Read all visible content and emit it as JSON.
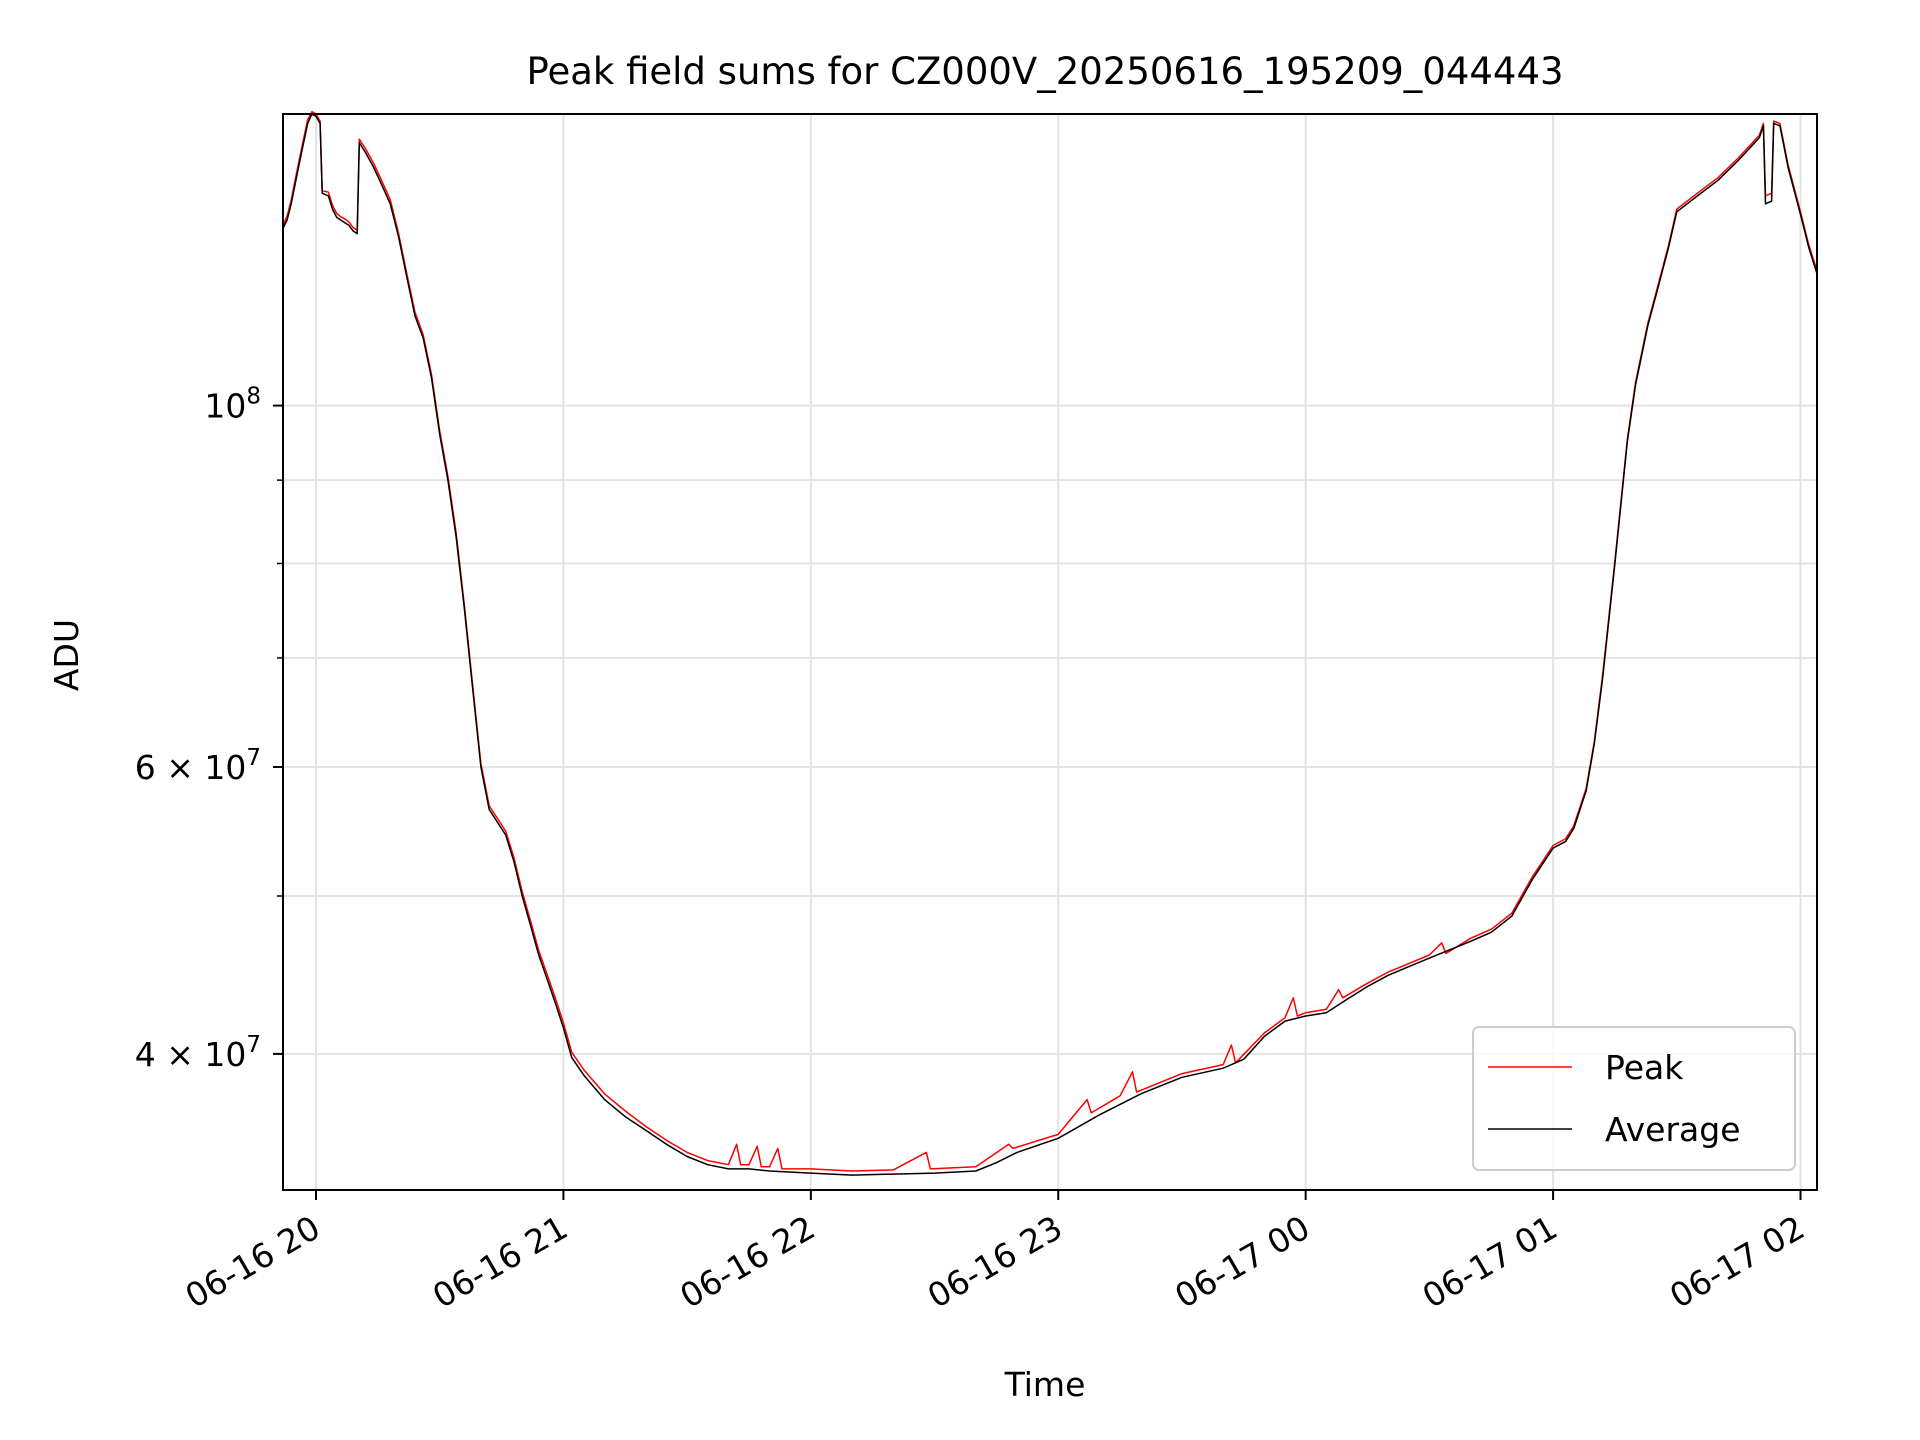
{
  "chart_data": {
    "type": "line",
    "title": "Peak field sums for CZ000V_20250616_195209_044443",
    "xlabel": "Time",
    "ylabel": "ADU",
    "yscale": "log",
    "ylim": [
      33000000,
      151000000
    ],
    "xlim": [
      "2025-06-16 19:52",
      "2025-06-17 02:04"
    ],
    "x_ticks": [
      {
        "t": "2025-06-16 20:00",
        "label": "06-16 20"
      },
      {
        "t": "2025-06-16 21:00",
        "label": "06-16 21"
      },
      {
        "t": "2025-06-16 22:00",
        "label": "06-16 22"
      },
      {
        "t": "2025-06-16 23:00",
        "label": "06-16 23"
      },
      {
        "t": "2025-06-17 00:00",
        "label": "06-17 00"
      },
      {
        "t": "2025-06-17 01:00",
        "label": "06-17 01"
      },
      {
        "t": "2025-06-17 02:00",
        "label": "06-17 02"
      }
    ],
    "y_major_ticks": [
      {
        "value": 100000000,
        "base": "10",
        "exp": "8"
      },
      {
        "value": 60000000,
        "base": "6 × 10",
        "exp": "7"
      },
      {
        "value": 40000000,
        "base": "4 × 10",
        "exp": "7"
      }
    ],
    "y_minor_ticks": [
      50000000,
      70000000,
      80000000,
      90000000
    ],
    "grid": true,
    "legend_position": "lower-right",
    "series": [
      {
        "name": "Average",
        "color": "#000000",
        "points": [
          [
            "2025-06-16 19:52",
            128500000
          ],
          [
            "2025-06-16 19:53",
            130000000
          ],
          [
            "2025-06-16 19:54",
            133000000
          ],
          [
            "2025-06-16 19:55",
            137000000
          ],
          [
            "2025-06-16 19:56",
            141000000
          ],
          [
            "2025-06-16 19:57",
            145000000
          ],
          [
            "2025-06-16 19:58",
            149000000
          ],
          [
            "2025-06-16 19:59",
            151000000
          ],
          [
            "2025-06-16 20:00",
            150500000
          ],
          [
            "2025-06-16 20:01",
            149000000
          ],
          [
            "2025-06-16 20:01:30",
            135000000
          ],
          [
            "2025-06-16 20:03",
            134500000
          ],
          [
            "2025-06-16 20:04",
            132000000
          ],
          [
            "2025-06-16 20:05",
            130500000
          ],
          [
            "2025-06-16 20:06",
            130000000
          ],
          [
            "2025-06-16 20:07",
            129500000
          ],
          [
            "2025-06-16 20:08",
            129000000
          ],
          [
            "2025-06-16 20:09",
            128000000
          ],
          [
            "2025-06-16 20:10",
            127500000
          ],
          [
            "2025-06-16 20:10:30",
            145000000
          ],
          [
            "2025-06-16 20:12",
            143000000
          ],
          [
            "2025-06-16 20:14",
            140000000
          ],
          [
            "2025-06-16 20:16",
            136500000
          ],
          [
            "2025-06-16 20:18",
            133000000
          ],
          [
            "2025-06-16 20:20",
            127000000
          ],
          [
            "2025-06-16 20:22",
            120000000
          ],
          [
            "2025-06-16 20:24",
            113500000
          ],
          [
            "2025-06-16 20:26",
            110000000
          ],
          [
            "2025-06-16 20:28",
            104000000
          ],
          [
            "2025-06-16 20:30",
            96000000
          ],
          [
            "2025-06-16 20:32",
            90000000
          ],
          [
            "2025-06-16 20:34",
            83000000
          ],
          [
            "2025-06-16 20:36",
            75000000
          ],
          [
            "2025-06-16 20:38",
            67000000
          ],
          [
            "2025-06-16 20:40",
            60000000
          ],
          [
            "2025-06-16 20:42",
            56500000
          ],
          [
            "2025-06-16 20:44",
            55500000
          ],
          [
            "2025-06-16 20:46",
            54500000
          ],
          [
            "2025-06-16 20:48",
            52500000
          ],
          [
            "2025-06-16 20:50",
            50000000
          ],
          [
            "2025-06-16 20:52",
            48000000
          ],
          [
            "2025-06-16 20:54",
            46000000
          ],
          [
            "2025-06-16 20:56",
            44500000
          ],
          [
            "2025-06-16 20:58",
            43000000
          ],
          [
            "2025-06-16 21:00",
            41500000
          ],
          [
            "2025-06-16 21:02",
            39800000
          ],
          [
            "2025-06-16 21:05",
            38800000
          ],
          [
            "2025-06-16 21:10",
            37500000
          ],
          [
            "2025-06-16 21:15",
            36600000
          ],
          [
            "2025-06-16 21:20",
            35900000
          ],
          [
            "2025-06-16 21:25",
            35200000
          ],
          [
            "2025-06-16 21:30",
            34600000
          ],
          [
            "2025-06-16 21:35",
            34200000
          ],
          [
            "2025-06-16 21:40",
            34000000
          ],
          [
            "2025-06-16 21:45",
            34000000
          ],
          [
            "2025-06-16 21:50",
            33900000
          ],
          [
            "2025-06-16 22:00",
            33800000
          ],
          [
            "2025-06-16 22:10",
            33700000
          ],
          [
            "2025-06-16 22:20",
            33750000
          ],
          [
            "2025-06-16 22:30",
            33800000
          ],
          [
            "2025-06-16 22:40",
            33900000
          ],
          [
            "2025-06-16 22:45",
            34300000
          ],
          [
            "2025-06-16 22:50",
            34800000
          ],
          [
            "2025-06-16 23:00",
            35500000
          ],
          [
            "2025-06-16 23:10",
            36700000
          ],
          [
            "2025-06-16 23:20",
            37800000
          ],
          [
            "2025-06-16 23:30",
            38700000
          ],
          [
            "2025-06-16 23:40",
            39200000
          ],
          [
            "2025-06-16 23:45",
            39700000
          ],
          [
            "2025-06-16 23:50",
            41000000
          ],
          [
            "2025-06-16 23:55",
            41900000
          ],
          [
            "2025-06-17 00:00",
            42200000
          ],
          [
            "2025-06-17 00:05",
            42400000
          ],
          [
            "2025-06-17 00:10",
            43200000
          ],
          [
            "2025-06-17 00:15",
            44000000
          ],
          [
            "2025-06-17 00:20",
            44700000
          ],
          [
            "2025-06-17 00:30",
            45800000
          ],
          [
            "2025-06-17 00:40",
            46900000
          ],
          [
            "2025-06-17 00:45",
            47500000
          ],
          [
            "2025-06-17 00:50",
            48600000
          ],
          [
            "2025-06-17 00:55",
            51200000
          ],
          [
            "2025-06-17 01:00",
            53500000
          ],
          [
            "2025-06-17 01:03",
            54000000
          ],
          [
            "2025-06-17 01:05",
            55000000
          ],
          [
            "2025-06-17 01:08",
            58000000
          ],
          [
            "2025-06-17 01:10",
            62000000
          ],
          [
            "2025-06-17 01:12",
            68000000
          ],
          [
            "2025-06-17 01:15",
            80000000
          ],
          [
            "2025-06-17 01:18",
            95000000
          ],
          [
            "2025-06-17 01:20",
            103000000
          ],
          [
            "2025-06-17 01:23",
            112000000
          ],
          [
            "2025-06-17 01:25",
            117000000
          ],
          [
            "2025-06-17 01:28",
            125000000
          ],
          [
            "2025-06-17 01:30",
            131500000
          ],
          [
            "2025-06-17 01:35",
            134500000
          ],
          [
            "2025-06-17 01:40",
            137500000
          ],
          [
            "2025-06-17 01:45",
            141500000
          ],
          [
            "2025-06-17 01:50",
            146000000
          ],
          [
            "2025-06-17 01:51",
            148500000
          ],
          [
            "2025-06-17 01:51:30",
            133000000
          ],
          [
            "2025-06-17 01:53",
            133500000
          ],
          [
            "2025-06-17 01:53:30",
            149000000
          ],
          [
            "2025-06-17 01:55",
            148500000
          ],
          [
            "2025-06-17 01:57",
            140000000
          ],
          [
            "2025-06-17 02:00",
            131000000
          ],
          [
            "2025-06-17 02:02",
            125000000
          ],
          [
            "2025-06-17 02:04",
            120500000
          ]
        ]
      },
      {
        "name": "Peak",
        "color": "#ff0000",
        "points": [
          [
            "2025-06-16 19:52",
            129000000
          ],
          [
            "2025-06-16 19:53",
            130700000
          ],
          [
            "2025-06-16 19:54",
            133700000
          ],
          [
            "2025-06-16 19:55",
            137800000
          ],
          [
            "2025-06-16 19:56",
            141800000
          ],
          [
            "2025-06-16 19:57",
            145800000
          ],
          [
            "2025-06-16 19:58",
            149800000
          ],
          [
            "2025-06-16 19:59",
            151500000
          ],
          [
            "2025-06-16 20:00",
            151000000
          ],
          [
            "2025-06-16 20:01",
            149500000
          ],
          [
            "2025-06-16 20:01:30",
            135500000
          ],
          [
            "2025-06-16 20:03",
            135200000
          ],
          [
            "2025-06-16 20:04",
            132700000
          ],
          [
            "2025-06-16 20:05",
            131200000
          ],
          [
            "2025-06-16 20:06",
            130600000
          ],
          [
            "2025-06-16 20:07",
            130200000
          ],
          [
            "2025-06-16 20:08",
            129600000
          ],
          [
            "2025-06-16 20:09",
            128600000
          ],
          [
            "2025-06-16 20:10",
            128100000
          ],
          [
            "2025-06-16 20:10:30",
            145700000
          ],
          [
            "2025-06-16 20:12",
            143800000
          ],
          [
            "2025-06-16 20:14",
            140800000
          ],
          [
            "2025-06-16 20:16",
            137300000
          ],
          [
            "2025-06-16 20:18",
            133800000
          ],
          [
            "2025-06-16 20:20",
            127600000
          ],
          [
            "2025-06-16 20:22",
            120600000
          ],
          [
            "2025-06-16 20:24",
            114100000
          ],
          [
            "2025-06-16 20:26",
            110500000
          ],
          [
            "2025-06-16 20:28",
            104500000
          ],
          [
            "2025-06-16 20:30",
            96500000
          ],
          [
            "2025-06-16 20:32",
            90500000
          ],
          [
            "2025-06-16 20:34",
            83500000
          ],
          [
            "2025-06-16 20:36",
            75400000
          ],
          [
            "2025-06-16 20:38",
            67300000
          ],
          [
            "2025-06-16 20:40",
            60300000
          ],
          [
            "2025-06-16 20:42",
            56800000
          ],
          [
            "2025-06-16 20:44",
            55800000
          ],
          [
            "2025-06-16 20:46",
            54800000
          ],
          [
            "2025-06-16 20:48",
            52800000
          ],
          [
            "2025-06-16 20:50",
            50300000
          ],
          [
            "2025-06-16 20:52",
            48300000
          ],
          [
            "2025-06-16 20:54",
            46300000
          ],
          [
            "2025-06-16 20:56",
            44800000
          ],
          [
            "2025-06-16 20:58",
            43300000
          ],
          [
            "2025-06-16 21:00",
            41800000
          ],
          [
            "2025-06-16 21:02",
            40100000
          ],
          [
            "2025-06-16 21:05",
            39100000
          ],
          [
            "2025-06-16 21:10",
            37800000
          ],
          [
            "2025-06-16 21:15",
            36900000
          ],
          [
            "2025-06-16 21:20",
            36100000
          ],
          [
            "2025-06-16 21:25",
            35400000
          ],
          [
            "2025-06-16 21:30",
            34800000
          ],
          [
            "2025-06-16 21:35",
            34400000
          ],
          [
            "2025-06-16 21:40",
            34200000
          ],
          [
            "2025-06-16 21:42",
            35200000
          ],
          [
            "2025-06-16 21:43",
            34200000
          ],
          [
            "2025-06-16 21:45",
            34200000
          ],
          [
            "2025-06-16 21:47",
            35100000
          ],
          [
            "2025-06-16 21:48",
            34100000
          ],
          [
            "2025-06-16 21:50",
            34100000
          ],
          [
            "2025-06-16 21:52",
            35000000
          ],
          [
            "2025-06-16 21:53",
            34000000
          ],
          [
            "2025-06-16 22:00",
            34000000
          ],
          [
            "2025-06-16 22:10",
            33900000
          ],
          [
            "2025-06-16 22:20",
            33950000
          ],
          [
            "2025-06-16 22:28",
            34800000
          ],
          [
            "2025-06-16 22:29",
            34000000
          ],
          [
            "2025-06-16 22:40",
            34100000
          ],
          [
            "2025-06-16 22:48",
            35200000
          ],
          [
            "2025-06-16 22:49",
            35000000
          ],
          [
            "2025-06-16 23:00",
            35700000
          ],
          [
            "2025-06-16 23:07",
            37500000
          ],
          [
            "2025-06-16 23:08",
            36800000
          ],
          [
            "2025-06-16 23:15",
            37700000
          ],
          [
            "2025-06-16 23:18",
            39000000
          ],
          [
            "2025-06-16 23:19",
            37900000
          ],
          [
            "2025-06-16 23:30",
            38900000
          ],
          [
            "2025-06-16 23:40",
            39400000
          ],
          [
            "2025-06-16 23:42",
            40500000
          ],
          [
            "2025-06-16 23:43",
            39500000
          ],
          [
            "2025-06-16 23:50",
            41200000
          ],
          [
            "2025-06-16 23:55",
            42100000
          ],
          [
            "2025-06-16 23:57",
            43300000
          ],
          [
            "2025-06-16 23:58",
            42200000
          ],
          [
            "2025-06-17 00:00",
            42400000
          ],
          [
            "2025-06-17 00:05",
            42600000
          ],
          [
            "2025-06-17 00:08",
            43800000
          ],
          [
            "2025-06-17 00:09",
            43300000
          ],
          [
            "2025-06-17 00:15",
            44200000
          ],
          [
            "2025-06-17 00:20",
            44900000
          ],
          [
            "2025-06-17 00:30",
            46000000
          ],
          [
            "2025-06-17 00:33",
            46800000
          ],
          [
            "2025-06-17 00:34",
            46100000
          ],
          [
            "2025-06-17 00:40",
            47100000
          ],
          [
            "2025-06-17 00:45",
            47700000
          ],
          [
            "2025-06-17 00:50",
            48800000
          ],
          [
            "2025-06-17 00:55",
            51400000
          ],
          [
            "2025-06-17 01:00",
            53700000
          ],
          [
            "2025-06-17 01:03",
            54200000
          ],
          [
            "2025-06-17 01:05",
            55200000
          ],
          [
            "2025-06-17 01:08",
            58200000
          ],
          [
            "2025-06-17 01:10",
            62200000
          ],
          [
            "2025-06-17 01:12",
            68300000
          ],
          [
            "2025-06-17 01:15",
            80300000
          ],
          [
            "2025-06-17 01:18",
            95300000
          ],
          [
            "2025-06-17 01:20",
            103400000
          ],
          [
            "2025-06-17 01:23",
            112400000
          ],
          [
            "2025-06-17 01:25",
            117400000
          ],
          [
            "2025-06-17 01:28",
            125400000
          ],
          [
            "2025-06-17 01:30",
            132000000
          ],
          [
            "2025-06-17 01:35",
            135000000
          ],
          [
            "2025-06-17 01:40",
            138000000
          ],
          [
            "2025-06-17 01:45",
            142000000
          ],
          [
            "2025-06-17 01:50",
            146500000
          ],
          [
            "2025-06-17 01:51",
            149000000
          ],
          [
            "2025-06-17 01:51:30",
            134500000
          ],
          [
            "2025-06-17 01:53",
            135000000
          ],
          [
            "2025-06-17 01:53:30",
            149500000
          ],
          [
            "2025-06-17 01:55",
            149000000
          ],
          [
            "2025-06-17 01:57",
            140500000
          ],
          [
            "2025-06-17 02:00",
            131500000
          ],
          [
            "2025-06-17 02:02",
            125500000
          ],
          [
            "2025-06-17 02:04",
            121000000
          ]
        ]
      }
    ],
    "legend": [
      {
        "name": "Peak",
        "color": "#ff0000"
      },
      {
        "name": "Average",
        "color": "#000000"
      }
    ]
  }
}
